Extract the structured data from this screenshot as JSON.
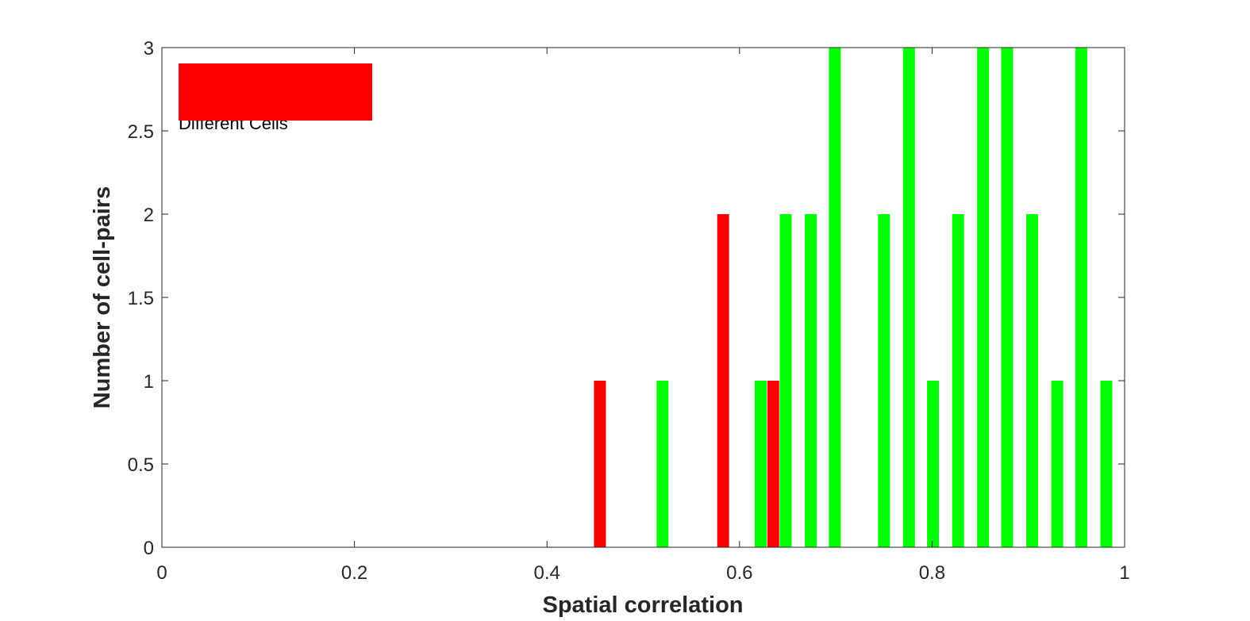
{
  "chart_data": {
    "type": "bar",
    "xlabel": "Spatial correlation",
    "ylabel": "Number of cell-pairs",
    "xlim": [
      0,
      1
    ],
    "ylim": [
      0,
      3
    ],
    "xticks": [
      0,
      0.2,
      0.4,
      0.6,
      0.8,
      1
    ],
    "xtick_labels": [
      "0",
      "0.2",
      "0.4",
      "0.6",
      "0.8",
      "1"
    ],
    "yticks": [
      0,
      0.5,
      1,
      1.5,
      2,
      2.5,
      3
    ],
    "ytick_labels": [
      "0",
      "0.5",
      "1",
      "1.5",
      "2",
      "2.5",
      "3"
    ],
    "grid": false,
    "legend_position": "top-left",
    "series": [
      {
        "name": "Different Cells",
        "color": "#ff0000",
        "x": [
          0.455,
          0.583,
          0.635
        ],
        "values": [
          1,
          2,
          1
        ]
      },
      {
        "color": "#00ff00",
        "x": [
          0.52,
          0.622,
          0.648,
          0.674,
          0.699,
          0.75,
          0.776,
          0.801,
          0.827,
          0.853,
          0.878,
          0.904,
          0.93,
          0.955,
          0.981
        ],
        "values": [
          1,
          1,
          2,
          2,
          3,
          2,
          3,
          1,
          2,
          3,
          3,
          2,
          1,
          3,
          1
        ]
      }
    ]
  }
}
